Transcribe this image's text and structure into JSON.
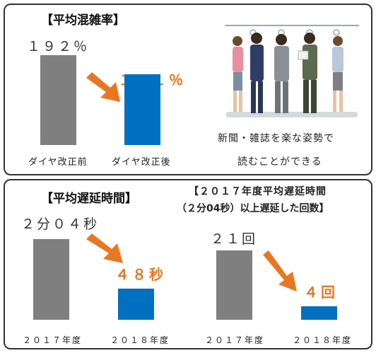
{
  "congestion": {
    "title": "【平均混雑率】",
    "chart_data": {
      "type": "bar",
      "title": "【平均混雑率】",
      "categories": [
        "ダイヤ改正前",
        "ダイヤ改正後"
      ],
      "values": [
        192,
        151
      ],
      "value_labels": [
        "１９２％",
        "１５１％"
      ],
      "unit": "%",
      "colors": [
        "#7F7F7F",
        "#0070C0"
      ],
      "ylim": [
        0,
        192
      ]
    },
    "illustration_caption": [
      "新聞・雑誌を楽な姿勢で",
      "読むことができる"
    ]
  },
  "delay_time": {
    "title": "【平均遅延時間】",
    "chart_data": {
      "type": "bar",
      "title": "【平均遅延時間】",
      "categories": [
        "２０１７年度",
        "２０１８年度"
      ],
      "values": [
        124,
        48
      ],
      "value_labels": [
        "２分０４秒",
        "４８秒"
      ],
      "unit": "s",
      "colors": [
        "#7F7F7F",
        "#0070C0"
      ],
      "ylim": [
        0,
        124
      ]
    }
  },
  "delay_count": {
    "title_lines": [
      "【２０１７年度平均遅延時間",
      "（２分04秒）以上遅延した回数】"
    ],
    "chart_data": {
      "type": "bar",
      "title": "【２０１７年度平均遅延時間（２分04秒）以上遅延した回数】",
      "categories": [
        "２０１７年度",
        "２０１８年度"
      ],
      "values": [
        21,
        4
      ],
      "value_labels": [
        "２１回",
        "４回"
      ],
      "unit": "回",
      "colors": [
        "#7F7F7F",
        "#0070C0"
      ],
      "ylim": [
        0,
        21
      ]
    }
  },
  "colors": {
    "accent": "#E87722",
    "before": "#7F7F7F",
    "after": "#0070C0"
  },
  "icons": [
    "decrease-arrow-icon",
    "crowded-train-passengers-illustration"
  ]
}
